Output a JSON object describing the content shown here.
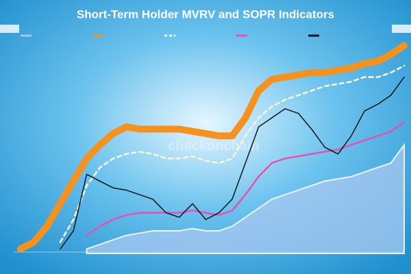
{
  "chart_data": {
    "type": "line",
    "title": "Short-Term Holder MVRV and SOPR Indicators",
    "watermark": "checkonchain",
    "categories": [
      null,
      null,
      null,
      null,
      null,
      null,
      null,
      null,
      null,
      null,
      null,
      null,
      null,
      null,
      null,
      null,
      null,
      null,
      null,
      null,
      null,
      null,
      null,
      null,
      null,
      null,
      null,
      null,
      null,
      null
    ],
    "ylim": [
      0,
      100
    ],
    "series": [
      {
        "color": "#a8c8f0",
        "area": true,
        "width": 2,
        "values": [
          null,
          null,
          null,
          null,
          null,
          2,
          4,
          6,
          8,
          9,
          10,
          10,
          10,
          11,
          10,
          10,
          12,
          16,
          20,
          24,
          26,
          28,
          30,
          32,
          33,
          34,
          36,
          38,
          40,
          48
        ]
      },
      {
        "color": "#f5921e",
        "width": 10,
        "values": [
          2,
          5,
          12,
          22,
          32,
          42,
          48,
          53,
          56,
          55,
          55,
          55,
          55,
          54,
          53,
          52,
          52,
          60,
          72,
          77,
          78,
          79,
          80,
          80,
          81,
          82,
          84,
          85,
          88,
          92
        ]
      },
      {
        "color": "#fff6d0",
        "dash": true,
        "width": 2.5,
        "values": [
          null,
          null,
          null,
          5,
          15,
          30,
          38,
          42,
          44,
          45,
          44,
          42,
          42,
          43,
          41,
          40,
          42,
          52,
          60,
          65,
          68,
          70,
          72,
          74,
          75,
          76,
          78,
          78,
          80,
          83
        ]
      },
      {
        "color": "#e84fb0",
        "width": 2.5,
        "values": [
          null,
          null,
          null,
          null,
          null,
          8,
          12,
          15,
          17,
          18,
          18,
          18,
          18,
          19,
          18,
          17,
          19,
          26,
          34,
          40,
          42,
          43,
          44,
          45,
          46,
          48,
          50,
          52,
          54,
          58
        ]
      },
      {
        "color": "#111111",
        "width": 1.5,
        "values": [
          null,
          null,
          null,
          2,
          10,
          35,
          32,
          29,
          28,
          26,
          24,
          18,
          16,
          22,
          15,
          18,
          24,
          40,
          56,
          60,
          64,
          62,
          55,
          47,
          44,
          52,
          63,
          66,
          70,
          78
        ]
      }
    ]
  }
}
